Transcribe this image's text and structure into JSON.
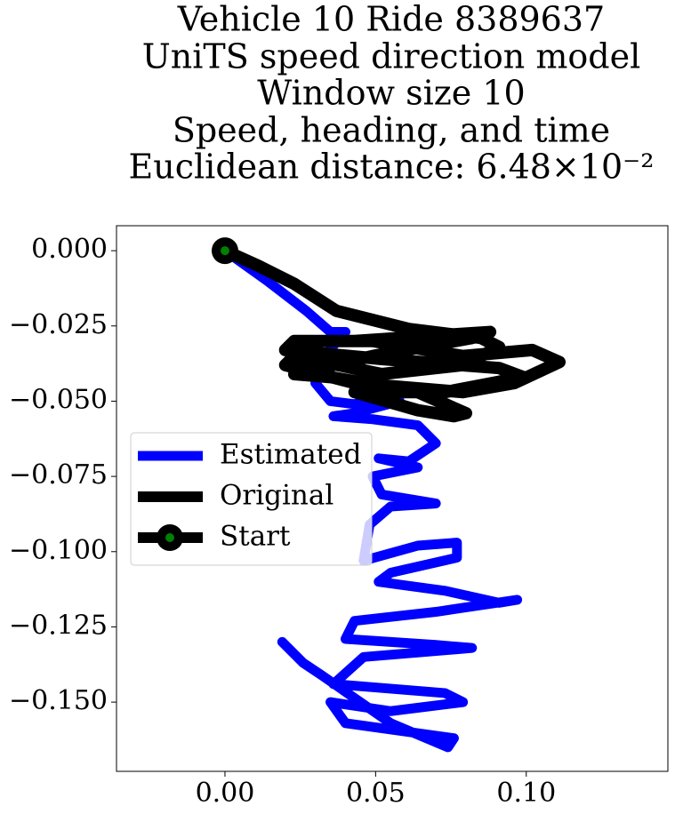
{
  "chart_data": {
    "type": "line",
    "title": [
      "Vehicle 10 Ride 8389637",
      "UniTS speed direction model",
      "Window size 10",
      "Speed, heading, and time",
      "Euclidean distance: 6.48×10⁻²"
    ],
    "xlim": [
      -0.036,
      0.147
    ],
    "ylim": [
      -0.173,
      0.0083
    ],
    "xticks": [
      {
        "value": 0,
        "label": "0.00"
      },
      {
        "value": 0.05,
        "label": "0.05"
      },
      {
        "value": 0.1,
        "label": "0.10"
      }
    ],
    "yticks": [
      {
        "value": 0,
        "label": "0.000"
      },
      {
        "value": -0.025,
        "label": "−0.025"
      },
      {
        "value": -0.05,
        "label": "−0.050"
      },
      {
        "value": -0.075,
        "label": "−0.075"
      },
      {
        "value": -0.1,
        "label": "−0.100"
      },
      {
        "value": -0.125,
        "label": "−0.125"
      },
      {
        "value": -0.15,
        "label": "−0.150"
      }
    ],
    "legend": "center left",
    "series": [
      {
        "name": "Estimated",
        "color": "#0000ff",
        "x": [
          0,
          0.014,
          0.027,
          0.035,
          0.04,
          0.033,
          0.03,
          0.035,
          0.043,
          0.055,
          0.058,
          0.043,
          0.036,
          0.049,
          0.064,
          0.07,
          0.061,
          0.051,
          0.064,
          0.049,
          0.052,
          0.07,
          0.055,
          0.048,
          0.046,
          0.064,
          0.077,
          0.077,
          0.055,
          0.051,
          0.073,
          0.091,
          0.097,
          0.07,
          0.043,
          0.04,
          0.07,
          0.082,
          0.046,
          0.036,
          0.073,
          0.079,
          0.055,
          0.035,
          0.04,
          0.076,
          0.074,
          0.055,
          0.032,
          0.026,
          0.019
        ],
        "values": [
          0,
          -0.01,
          -0.02,
          -0.027,
          -0.027,
          -0.035,
          -0.044,
          -0.05,
          -0.051,
          -0.048,
          -0.05,
          -0.054,
          -0.055,
          -0.056,
          -0.058,
          -0.064,
          -0.07,
          -0.069,
          -0.072,
          -0.075,
          -0.081,
          -0.084,
          -0.085,
          -0.091,
          -0.103,
          -0.098,
          -0.097,
          -0.102,
          -0.107,
          -0.11,
          -0.113,
          -0.117,
          -0.116,
          -0.12,
          -0.123,
          -0.129,
          -0.131,
          -0.132,
          -0.135,
          -0.144,
          -0.147,
          -0.15,
          -0.153,
          -0.15,
          -0.157,
          -0.162,
          -0.165,
          -0.157,
          -0.141,
          -0.137,
          -0.13
        ]
      },
      {
        "name": "Original",
        "color": "#000000",
        "x": [
          0,
          0.011,
          0.023,
          0.037,
          0.061,
          0.085,
          0.091,
          0.079,
          0.052,
          0.023,
          0.02,
          0.043,
          0.079,
          0.096,
          0.111,
          0.102,
          0.079,
          0.049,
          0.023,
          0.02,
          0.052,
          0.091,
          0.099,
          0.073,
          0.043,
          0.064,
          0.076,
          0.08,
          0.064,
          0.035,
          0.023,
          0.049,
          0.082,
          0.088,
          0.058,
          0.043
        ],
        "values": [
          0,
          -0.005,
          -0.011,
          -0.02,
          -0.026,
          -0.029,
          -0.032,
          -0.038,
          -0.041,
          -0.035,
          -0.038,
          -0.044,
          -0.047,
          -0.044,
          -0.037,
          -0.033,
          -0.035,
          -0.03,
          -0.03,
          -0.033,
          -0.036,
          -0.039,
          -0.042,
          -0.047,
          -0.047,
          -0.053,
          -0.055,
          -0.054,
          -0.047,
          -0.042,
          -0.041,
          -0.035,
          -0.029,
          -0.027,
          -0.029,
          -0.03
        ]
      },
      {
        "name": "Start",
        "color": "#000000",
        "marker_color": "#008000",
        "x": [
          0
        ],
        "values": [
          0
        ]
      }
    ]
  }
}
